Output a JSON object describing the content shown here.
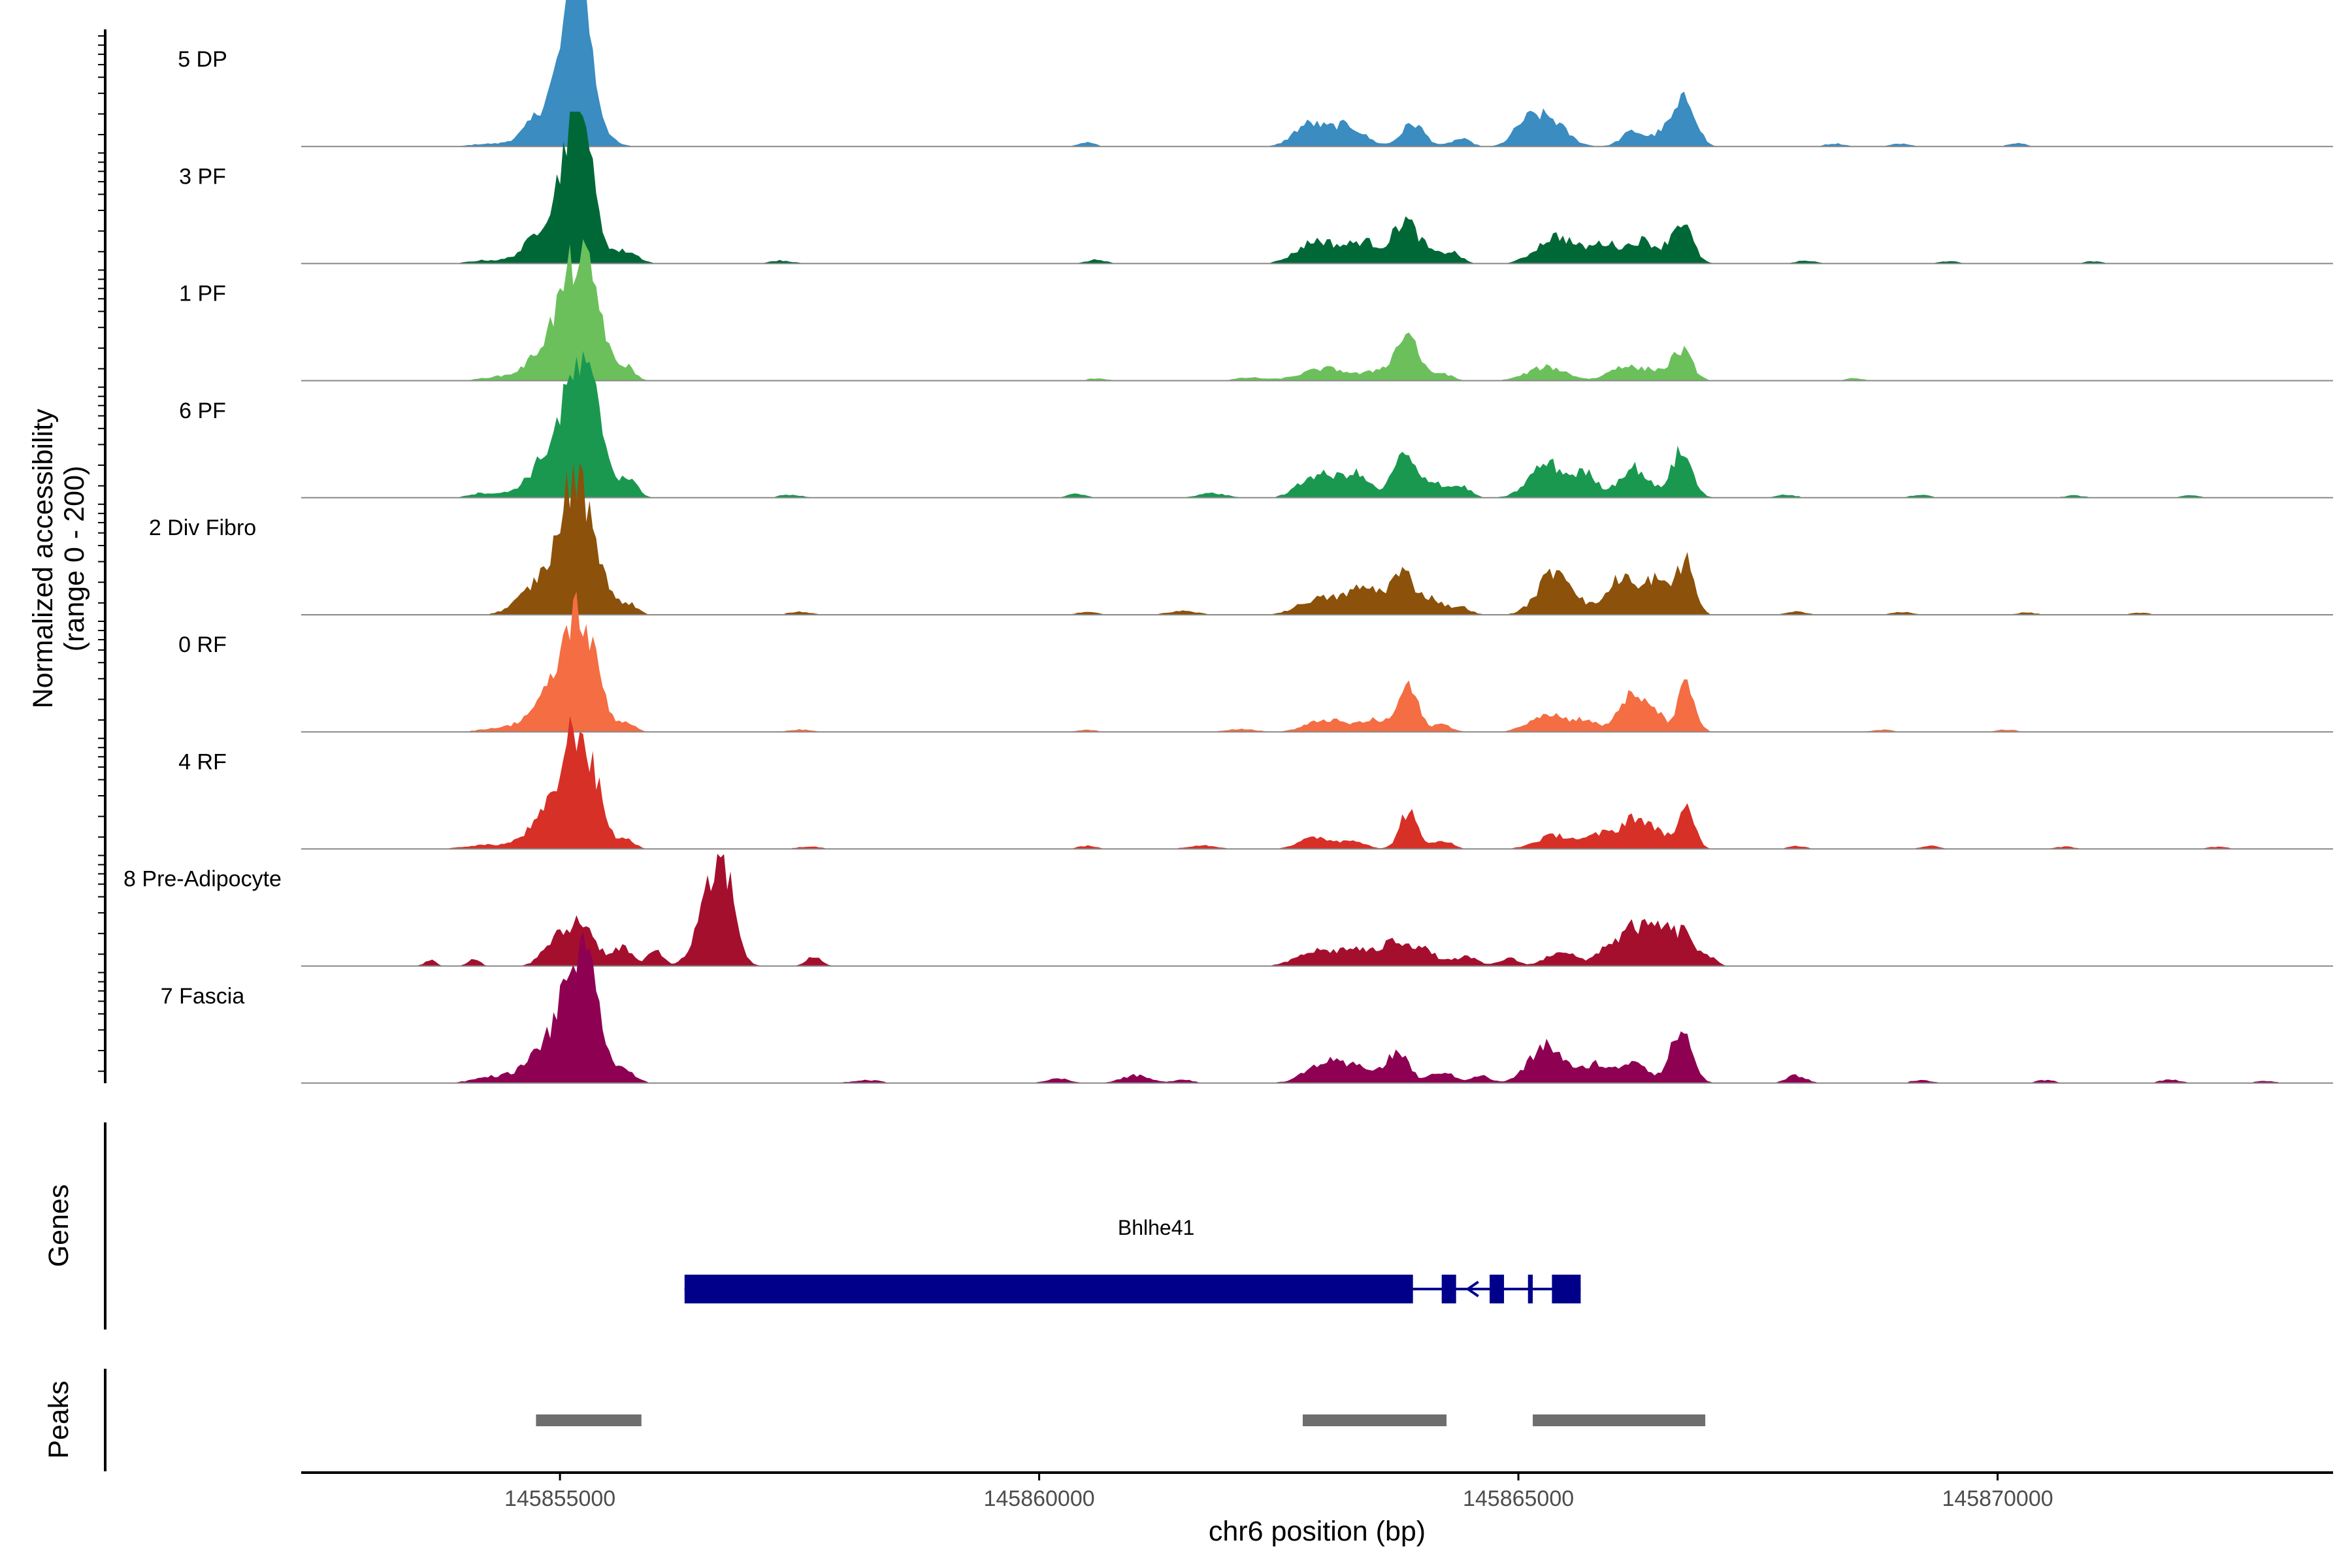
{
  "chart_data": {
    "type": "area",
    "title": "",
    "xlabel": "chr6 position (bp)",
    "ylabel": "Normalized accessibility",
    "ylabel_range": "(range 0 - 200)",
    "ylim": [
      0,
      200
    ],
    "xlim": [
      145852300,
      145873500
    ],
    "x_ticks": [
      145855000,
      145860000,
      145865000,
      145870000
    ],
    "x_tick_labels": [
      "145855000",
      "145860000",
      "145865000",
      "145870000"
    ],
    "axis_color": "#000000",
    "baseline_color": "#888888",
    "tracks": [
      {
        "name": "5 DP",
        "color": "#3A8CC1",
        "peaks": [
          [
            145855000,
            70,
            250
          ],
          [
            145855150,
            120,
            120
          ],
          [
            145855300,
            50,
            120
          ],
          [
            145855200,
            95,
            70
          ],
          [
            145862800,
            28,
            150
          ],
          [
            145863200,
            28,
            180
          ],
          [
            145863900,
            30,
            120
          ],
          [
            145864400,
            10,
            100
          ],
          [
            145865300,
            38,
            180
          ],
          [
            145865050,
            20,
            120
          ],
          [
            145866200,
            20,
            120
          ],
          [
            145866700,
            40,
            110
          ],
          [
            145866800,
            30,
            90
          ],
          [
            145860500,
            6,
            80
          ],
          [
            145866500,
            15,
            100
          ],
          [
            145868300,
            4,
            100
          ],
          [
            145869000,
            4,
            100
          ],
          [
            145870200,
            5,
            80
          ],
          [
            145854200,
            3,
            150
          ]
        ]
      },
      {
        "name": "3 PF",
        "color": "#006837",
        "peaks": [
          [
            145855000,
            70,
            250
          ],
          [
            145855150,
            110,
            120
          ],
          [
            145855300,
            50,
            120
          ],
          [
            145855200,
            90,
            70
          ],
          [
            145855700,
            15,
            120
          ],
          [
            145862900,
            30,
            200
          ],
          [
            145863400,
            28,
            180
          ],
          [
            145863800,
            50,
            110
          ],
          [
            145864000,
            20,
            120
          ],
          [
            145864300,
            15,
            100
          ],
          [
            145865400,
            36,
            200
          ],
          [
            145865900,
            25,
            150
          ],
          [
            145866300,
            30,
            150
          ],
          [
            145866700,
            55,
            110
          ],
          [
            145860600,
            5,
            100
          ],
          [
            145857300,
            4,
            120
          ],
          [
            145854200,
            4,
            150
          ],
          [
            145868000,
            4,
            100
          ],
          [
            145869500,
            3,
            100
          ],
          [
            145871000,
            3,
            100
          ]
        ]
      },
      {
        "name": "1 PF",
        "color": "#6BC05B",
        "peaks": [
          [
            145855000,
            60,
            250
          ],
          [
            145855200,
            110,
            160
          ],
          [
            145855400,
            40,
            100
          ],
          [
            145855700,
            18,
            80
          ],
          [
            145863000,
            16,
            250
          ],
          [
            145863600,
            14,
            150
          ],
          [
            145863850,
            60,
            110
          ],
          [
            145864200,
            10,
            100
          ],
          [
            145865300,
            18,
            200
          ],
          [
            145866100,
            20,
            150
          ],
          [
            145866700,
            40,
            110
          ],
          [
            145866400,
            12,
            100
          ],
          [
            145862200,
            4,
            150
          ],
          [
            145860600,
            3,
            100
          ],
          [
            145854300,
            4,
            150
          ],
          [
            145868500,
            3,
            100
          ]
        ]
      },
      {
        "name": "6 PF",
        "color": "#1A9850",
        "peaks": [
          [
            145855000,
            70,
            250
          ],
          [
            145855200,
            110,
            140
          ],
          [
            145855400,
            60,
            100
          ],
          [
            145855700,
            25,
            100
          ],
          [
            145862900,
            30,
            180
          ],
          [
            145863300,
            30,
            150
          ],
          [
            145863800,
            55,
            110
          ],
          [
            145864100,
            22,
            120
          ],
          [
            145864400,
            15,
            100
          ],
          [
            145865300,
            45,
            180
          ],
          [
            145865700,
            30,
            120
          ],
          [
            145866200,
            40,
            150
          ],
          [
            145866700,
            60,
            110
          ],
          [
            145861800,
            6,
            150
          ],
          [
            145860400,
            5,
            100
          ],
          [
            145857400,
            4,
            120
          ],
          [
            145854200,
            6,
            150
          ],
          [
            145867800,
            4,
            100
          ],
          [
            145869200,
            4,
            100
          ],
          [
            145870800,
            3,
            100
          ],
          [
            145872000,
            3,
            100
          ]
        ]
      },
      {
        "name": "2 Div Fibro",
        "color": "#8C510A",
        "peaks": [
          [
            145855000,
            70,
            250
          ],
          [
            145855180,
            130,
            130
          ],
          [
            145855400,
            40,
            100
          ],
          [
            145855700,
            15,
            100
          ],
          [
            145862900,
            20,
            200
          ],
          [
            145863400,
            35,
            200
          ],
          [
            145863800,
            50,
            120
          ],
          [
            145864100,
            20,
            120
          ],
          [
            145864400,
            10,
            100
          ],
          [
            145865400,
            60,
            180
          ],
          [
            145865900,
            15,
            100
          ],
          [
            145866100,
            50,
            110
          ],
          [
            145866400,
            45,
            100
          ],
          [
            145866750,
            65,
            90
          ],
          [
            145866600,
            20,
            100
          ],
          [
            145861500,
            5,
            150
          ],
          [
            145860500,
            4,
            100
          ],
          [
            145857500,
            4,
            120
          ],
          [
            145854600,
            6,
            150
          ],
          [
            145867900,
            4,
            100
          ],
          [
            145869000,
            4,
            100
          ],
          [
            145870300,
            3,
            100
          ],
          [
            145871500,
            3,
            100
          ]
        ]
      },
      {
        "name": "0 RF",
        "color": "#F46D43",
        "peaks": [
          [
            145855000,
            60,
            250
          ],
          [
            145855180,
            110,
            130
          ],
          [
            145855400,
            40,
            100
          ],
          [
            145855700,
            12,
            80
          ],
          [
            145863000,
            16,
            200
          ],
          [
            145863500,
            15,
            150
          ],
          [
            145863850,
            60,
            100
          ],
          [
            145864200,
            10,
            100
          ],
          [
            145865300,
            25,
            180
          ],
          [
            145865700,
            15,
            120
          ],
          [
            145866150,
            45,
            120
          ],
          [
            145866400,
            30,
            100
          ],
          [
            145866750,
            60,
            90
          ],
          [
            145862100,
            4,
            150
          ],
          [
            145860500,
            3,
            100
          ],
          [
            145857500,
            3,
            120
          ],
          [
            145854300,
            4,
            150
          ],
          [
            145868800,
            3,
            100
          ],
          [
            145870100,
            3,
            100
          ]
        ]
      },
      {
        "name": "4 RF",
        "color": "#D73027",
        "peaks": [
          [
            145855000,
            60,
            250
          ],
          [
            145855180,
            110,
            130
          ],
          [
            145855400,
            40,
            100
          ],
          [
            145855700,
            12,
            80
          ],
          [
            145862900,
            15,
            180
          ],
          [
            145863300,
            10,
            120
          ],
          [
            145863850,
            50,
            90
          ],
          [
            145864200,
            12,
            100
          ],
          [
            145865400,
            18,
            200
          ],
          [
            145865900,
            20,
            150
          ],
          [
            145866200,
            40,
            110
          ],
          [
            145866450,
            25,
            100
          ],
          [
            145866750,
            50,
            90
          ],
          [
            145861700,
            5,
            150
          ],
          [
            145860500,
            4,
            100
          ],
          [
            145857600,
            3,
            120
          ],
          [
            145854200,
            5,
            200
          ],
          [
            145867900,
            4,
            100
          ],
          [
            145869300,
            4,
            100
          ],
          [
            145870700,
            3,
            100
          ],
          [
            145872300,
            3,
            100
          ]
        ]
      },
      {
        "name": "8 Pre-Adipocyte",
        "color": "#A50F2E",
        "peaks": [
          [
            145855000,
            40,
            150
          ],
          [
            145855300,
            35,
            120
          ],
          [
            145855200,
            20,
            80
          ],
          [
            145855650,
            25,
            100
          ],
          [
            145856000,
            20,
            80
          ],
          [
            145856600,
            100,
            150
          ],
          [
            145856750,
            60,
            100
          ],
          [
            145857650,
            12,
            80
          ],
          [
            145853650,
            8,
            60
          ],
          [
            145854100,
            10,
            60
          ],
          [
            145862900,
            20,
            200
          ],
          [
            145863300,
            20,
            150
          ],
          [
            145863700,
            30,
            150
          ],
          [
            145864000,
            20,
            150
          ],
          [
            145864450,
            12,
            120
          ],
          [
            145864900,
            10,
            100
          ],
          [
            145865450,
            20,
            150
          ],
          [
            145865900,
            20,
            100
          ],
          [
            145866200,
            50,
            150
          ],
          [
            145866500,
            45,
            120
          ],
          [
            145866750,
            40,
            100
          ],
          [
            145867000,
            10,
            80
          ]
        ]
      },
      {
        "name": "7 Fascia",
        "color": "#8E0152",
        "peaks": [
          [
            145855000,
            70,
            250
          ],
          [
            145855200,
            115,
            130
          ],
          [
            145855400,
            50,
            100
          ],
          [
            145855700,
            15,
            100
          ],
          [
            145863000,
            28,
            200
          ],
          [
            145863400,
            18,
            150
          ],
          [
            145863750,
            40,
            110
          ],
          [
            145864200,
            15,
            120
          ],
          [
            145864600,
            10,
            100
          ],
          [
            145865300,
            50,
            180
          ],
          [
            145865800,
            25,
            120
          ],
          [
            145866200,
            30,
            150
          ],
          [
            145866700,
            70,
            110
          ],
          [
            145861000,
            10,
            150
          ],
          [
            145861500,
            5,
            100
          ],
          [
            145860200,
            6,
            120
          ],
          [
            145858200,
            4,
            150
          ],
          [
            145854300,
            8,
            200
          ],
          [
            145867900,
            10,
            100
          ],
          [
            145869200,
            4,
            100
          ],
          [
            145870500,
            4,
            100
          ],
          [
            145871800,
            5,
            100
          ],
          [
            145872800,
            3,
            100
          ]
        ]
      }
    ],
    "genes_label": "Genes",
    "gene": {
      "name": "Bhlhe41",
      "color": "#00008B",
      "strand": "-",
      "start": 145856300,
      "end": 145865300,
      "exons": [
        [
          145856300,
          145863900
        ],
        [
          145864200,
          145864350
        ],
        [
          145864700,
          145864850
        ],
        [
          145865100,
          145865150
        ],
        [
          145865350,
          145865650
        ]
      ]
    },
    "peaks_label": "Peaks",
    "peak_color": "#6E6E6E",
    "peak_regions": [
      [
        145854750,
        145855850
      ],
      [
        145862750,
        145864250
      ],
      [
        145865150,
        145866950
      ]
    ]
  }
}
